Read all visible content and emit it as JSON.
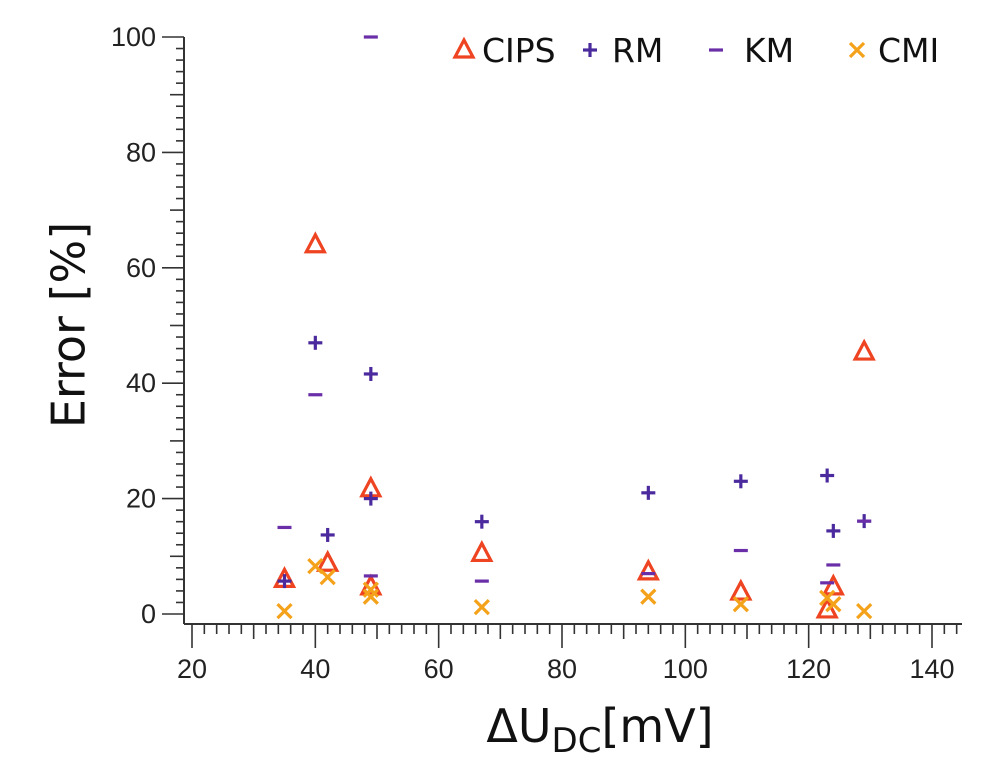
{
  "chart_data": {
    "type": "scatter",
    "title": "",
    "xlabel": "ΔU_DC[mV]",
    "xlabel_parts": {
      "prefix": "ΔU",
      "subscript": "DC",
      "suffix": "[mV]"
    },
    "ylabel": "Error [%]",
    "xlim": [
      18.7,
      145
    ],
    "ylim": [
      0,
      100
    ],
    "xticks": [
      20,
      40,
      60,
      80,
      100,
      120,
      140
    ],
    "yticks": [
      0,
      20,
      40,
      60,
      80,
      100
    ],
    "x_minor_step": 2,
    "y_minor_step": 2,
    "grid": false,
    "legend": "top-right",
    "series": [
      {
        "name": "CIPS",
        "marker": "triangle",
        "color": "#ee4422",
        "points": [
          [
            35,
            6
          ],
          [
            40,
            64
          ],
          [
            42,
            8.8
          ],
          [
            49,
            21.7
          ],
          [
            49,
            4.7
          ],
          [
            67,
            10.5
          ],
          [
            94,
            7.3
          ],
          [
            109,
            3.8
          ],
          [
            123,
            0.7
          ],
          [
            124,
            4.7
          ],
          [
            129,
            45.4
          ]
        ]
      },
      {
        "name": "RM",
        "marker": "plus",
        "color": "#4b2a9e",
        "points": [
          [
            35,
            5.7
          ],
          [
            40,
            47
          ],
          [
            42,
            13.7
          ],
          [
            49,
            41.6
          ],
          [
            49,
            20
          ],
          [
            67,
            16
          ],
          [
            94,
            21
          ],
          [
            109,
            23
          ],
          [
            123,
            24
          ],
          [
            124,
            14.4
          ],
          [
            129,
            16.1
          ]
        ]
      },
      {
        "name": "KM",
        "marker": "minus",
        "color": "#6a2fa8",
        "points": [
          [
            35,
            15
          ],
          [
            40,
            38
          ],
          [
            49,
            100
          ],
          [
            49,
            6.6
          ],
          [
            67,
            5.7
          ],
          [
            94,
            7
          ],
          [
            109,
            11
          ],
          [
            123,
            5.4
          ],
          [
            124,
            8.5
          ],
          [
            129,
            16.1
          ]
        ]
      },
      {
        "name": "CMI",
        "marker": "x",
        "color": "#f5a21b",
        "points": [
          [
            35,
            0.5
          ],
          [
            40,
            8.3
          ],
          [
            42,
            6.4
          ],
          [
            49,
            4.2
          ],
          [
            49,
            3
          ],
          [
            67,
            1.2
          ],
          [
            94,
            3
          ],
          [
            109,
            1.7
          ],
          [
            123,
            2.8
          ],
          [
            124,
            1.7
          ],
          [
            129,
            0.5
          ]
        ]
      }
    ]
  }
}
